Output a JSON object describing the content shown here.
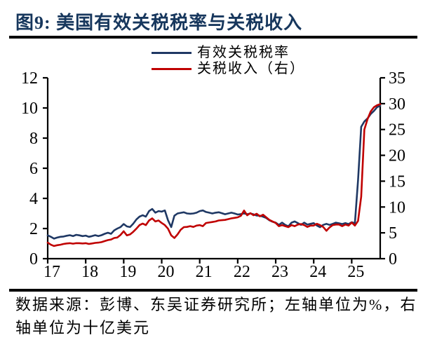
{
  "page": {
    "title": "图9: 美国有效关税税率与关税收入",
    "footer_line1": "数据来源：彭博、东吴证券研究所；左轴单位为%，右",
    "footer_line2": "轴单位为十亿美元"
  },
  "colors": {
    "title": "#17375d",
    "rate_line": "#1f3864",
    "revenue_line": "#c00000",
    "axis": "#000000",
    "rule": "#000000"
  },
  "chart_data": {
    "type": "line",
    "title": "美国有效关税税率与关税收入",
    "x_unit": "month",
    "x_start": "2017-01",
    "x_end": "2025-10",
    "x_tick_labels": [
      "17",
      "18",
      "19",
      "20",
      "21",
      "22",
      "23",
      "24",
      "25"
    ],
    "grid": false,
    "legend_position": "top-center",
    "left_axis": {
      "unit": "%",
      "min": 0,
      "max": 12,
      "ticks": [
        0,
        2,
        4,
        6,
        8,
        10,
        12
      ]
    },
    "right_axis": {
      "unit": "十亿美元",
      "min": 0,
      "max": 35,
      "ticks": [
        0,
        5,
        10,
        15,
        20,
        25,
        30,
        35
      ]
    },
    "series": [
      {
        "name": "有效关税税率",
        "axis": "left",
        "color": "#1f3864",
        "values": [
          1.55,
          1.45,
          1.33,
          1.4,
          1.45,
          1.47,
          1.52,
          1.56,
          1.5,
          1.58,
          1.55,
          1.5,
          1.53,
          1.45,
          1.5,
          1.56,
          1.5,
          1.56,
          1.65,
          1.72,
          1.65,
          1.88,
          2.0,
          2.1,
          2.3,
          2.14,
          2.1,
          2.32,
          2.6,
          2.79,
          2.88,
          2.79,
          3.16,
          3.3,
          3.05,
          3.16,
          3.12,
          3.2,
          2.55,
          2.1,
          2.85,
          3.0,
          3.04,
          3.08,
          3.0,
          2.98,
          3.0,
          3.05,
          3.16,
          3.2,
          3.1,
          3.05,
          3.0,
          3.05,
          3.08,
          3.02,
          2.95,
          3.0,
          3.05,
          3.0,
          2.93,
          2.96,
          3.0,
          2.95,
          3.0,
          2.94,
          2.86,
          2.85,
          2.78,
          2.7,
          2.55,
          2.45,
          2.39,
          2.24,
          2.39,
          2.24,
          2.15,
          2.39,
          2.47,
          2.36,
          2.24,
          2.39,
          2.26,
          2.31,
          2.36,
          2.2,
          2.09,
          2.24,
          2.31,
          2.24,
          2.31,
          2.39,
          2.35,
          2.3,
          2.36,
          2.3,
          2.42,
          2.35,
          5.2,
          8.75,
          9.1,
          9.3,
          9.6,
          9.8,
          10.05,
          10.15
        ]
      },
      {
        "name": "关税收入（右）",
        "axis": "right",
        "color": "#c00000",
        "values": [
          3.1,
          2.7,
          2.45,
          2.6,
          2.7,
          2.85,
          2.95,
          3.0,
          2.9,
          3.0,
          3.0,
          2.95,
          3.0,
          2.85,
          2.95,
          3.05,
          3.1,
          3.2,
          3.4,
          3.6,
          3.7,
          4.0,
          4.1,
          4.6,
          5.3,
          4.5,
          4.7,
          5.2,
          5.8,
          6.5,
          6.8,
          6.5,
          7.4,
          7.8,
          7.2,
          7.4,
          6.9,
          6.5,
          5.8,
          4.5,
          4.0,
          4.7,
          5.6,
          6.1,
          6.15,
          6.3,
          6.15,
          6.4,
          6.5,
          6.3,
          6.9,
          7.0,
          7.1,
          7.2,
          7.4,
          7.45,
          7.5,
          7.65,
          7.8,
          7.9,
          8.0,
          8.3,
          9.3,
          8.4,
          8.8,
          8.4,
          8.7,
          8.2,
          8.5,
          8.0,
          7.5,
          7.2,
          6.9,
          6.3,
          6.5,
          6.3,
          6.1,
          6.5,
          6.3,
          6.6,
          6.7,
          6.5,
          6.15,
          6.4,
          6.4,
          6.75,
          6.5,
          6.15,
          5.4,
          6.05,
          6.5,
          6.6,
          6.6,
          6.3,
          6.6,
          6.4,
          7.0,
          6.4,
          7.3,
          12.0,
          25.0,
          27.0,
          28.5,
          29.3,
          29.7,
          29.9
        ]
      }
    ]
  }
}
